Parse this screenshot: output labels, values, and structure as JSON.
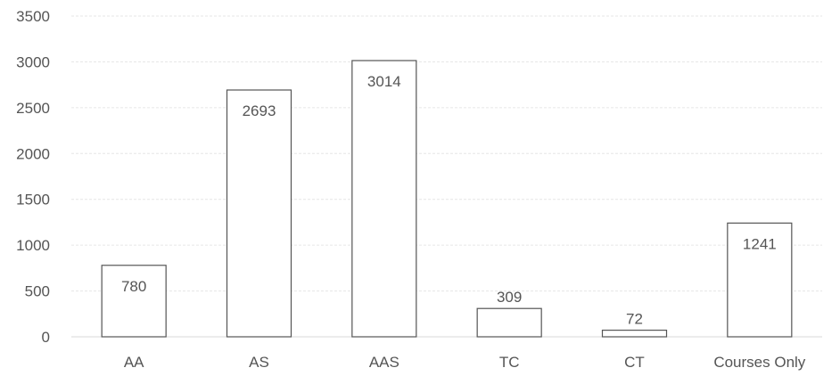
{
  "chart_data": {
    "type": "bar",
    "title": "",
    "xlabel": "",
    "ylabel": "",
    "categories": [
      "AA",
      "AS",
      "AAS",
      "TC",
      "CT",
      "Courses Only"
    ],
    "values": [
      780,
      2693,
      3014,
      309,
      72,
      1241
    ],
    "data_labels": [
      "780",
      "2693",
      "3014",
      "309",
      "72",
      "1241"
    ],
    "ylim": [
      0,
      3500
    ],
    "yticks": [
      "0",
      "500",
      "1000",
      "1500",
      "2000",
      "2500",
      "3000",
      "3500"
    ],
    "grid": true,
    "legend": "none",
    "colors": {
      "bar_fill": "#ffffff",
      "bar_stroke": "#555555",
      "text": "#555555",
      "grid": "#e6e6e6"
    }
  }
}
